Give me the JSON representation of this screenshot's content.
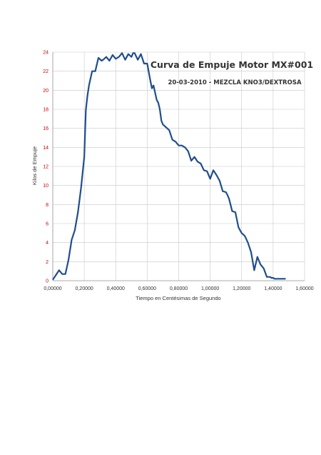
{
  "chart_data": {
    "type": "line",
    "title": "Curva de Empuje Motor MX#001",
    "subtitle": "20-03-2010 - MEZCLA KNO3/DEXTROSA",
    "xlabel": "Tiempo en Centésimas de Segundo",
    "ylabel": "Kilos de Empuje",
    "xlim": [
      0,
      1.6
    ],
    "ylim": [
      0,
      24
    ],
    "grid": true,
    "x_ticks": [
      "0,00000",
      "0,20000",
      "0,40000",
      "0,60000",
      "0,80000",
      "1,00000",
      "1,20000",
      "1,40000",
      "1,60000"
    ],
    "y_ticks": [
      "0",
      "2",
      "4",
      "6",
      "8",
      "10",
      "12",
      "14",
      "16",
      "18",
      "20",
      "22",
      "24"
    ],
    "series_color": "#1f4e8c",
    "series": [
      {
        "x": [
          0.0,
          0.04,
          0.06,
          0.08,
          0.1,
          0.12,
          0.14,
          0.16,
          0.18,
          0.2,
          0.21,
          0.22,
          0.23,
          0.25,
          0.27,
          0.29,
          0.31,
          0.32,
          0.34,
          0.36,
          0.38,
          0.4,
          0.42,
          0.44,
          0.46,
          0.48,
          0.5,
          0.51,
          0.52,
          0.54,
          0.56,
          0.58,
          0.6,
          0.62,
          0.63,
          0.64,
          0.66,
          0.67,
          0.68,
          0.69,
          0.7,
          0.72,
          0.74,
          0.76,
          0.78,
          0.8,
          0.82,
          0.84,
          0.86,
          0.88,
          0.9,
          0.92,
          0.94,
          0.96,
          0.98,
          1.0,
          1.02,
          1.04,
          1.06,
          1.08,
          1.1,
          1.11,
          1.12,
          1.14,
          1.16,
          1.18,
          1.2,
          1.22,
          1.24,
          1.26,
          1.28,
          1.3,
          1.32,
          1.34,
          1.36,
          1.38,
          1.39,
          1.4,
          1.41,
          1.42,
          1.43,
          1.44,
          1.46,
          1.47,
          1.48
        ],
        "y": [
          0.1,
          1.1,
          0.7,
          0.7,
          2.2,
          4.3,
          5.3,
          7.2,
          9.8,
          13.0,
          17.9,
          19.4,
          20.5,
          22.0,
          22.0,
          23.4,
          23.1,
          23.2,
          23.5,
          23.1,
          23.7,
          23.3,
          23.5,
          23.9,
          23.2,
          23.8,
          23.5,
          23.9,
          23.9,
          23.2,
          23.8,
          22.8,
          22.8,
          21.0,
          20.2,
          20.5,
          19.0,
          18.7,
          18.0,
          16.8,
          16.4,
          16.1,
          15.8,
          14.8,
          14.6,
          14.2,
          14.2,
          14.0,
          13.6,
          12.6,
          13.0,
          12.5,
          12.3,
          11.6,
          11.5,
          10.7,
          11.6,
          11.1,
          10.5,
          9.4,
          9.3,
          9.0,
          8.6,
          7.3,
          7.2,
          5.6,
          5.0,
          4.7,
          4.0,
          3.0,
          1.1,
          2.5,
          1.7,
          1.3,
          0.4,
          0.4,
          0.3,
          0.3,
          0.2,
          0.2,
          0.2,
          0.2,
          0.2,
          0.2,
          0.2
        ]
      }
    ]
  }
}
